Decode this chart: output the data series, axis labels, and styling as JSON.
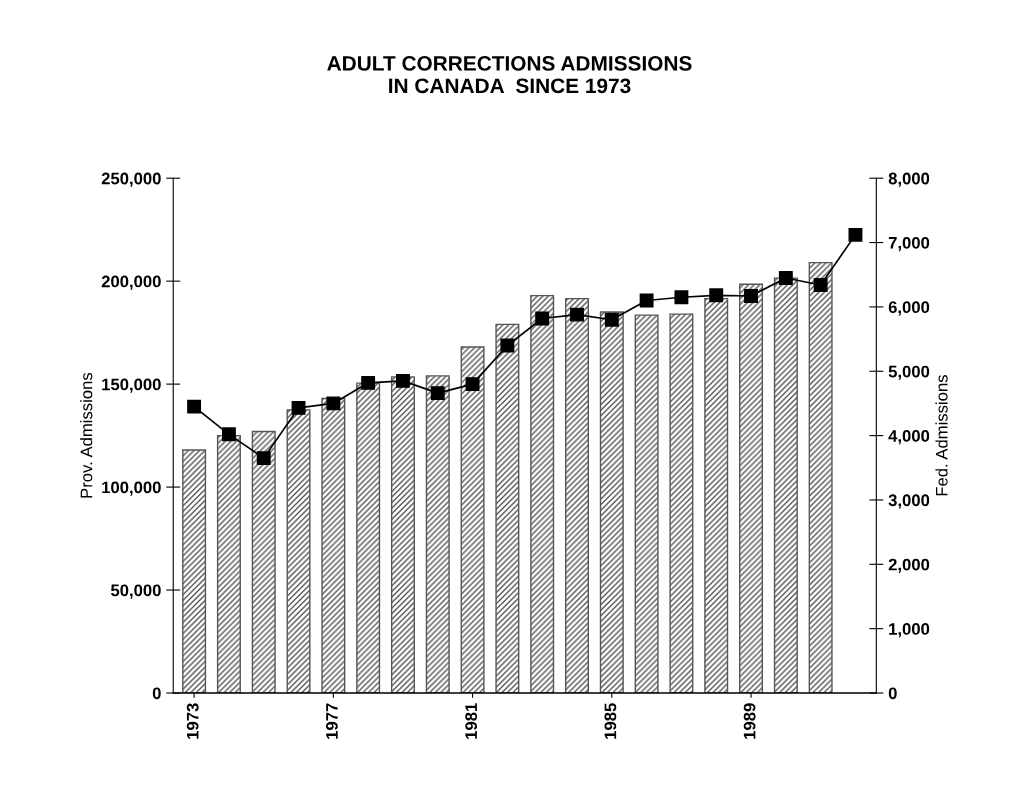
{
  "chart_data": {
    "type": "bar",
    "title": "ADULT CORRECTIONS ADMISSIONS\nIN CANADA  SINCE 1973",
    "ylabel": "Prov. Admissions",
    "y2label": "Fed. Admissions",
    "categories": [
      "1973",
      null,
      null,
      null,
      "1977",
      null,
      null,
      null,
      "1981",
      null,
      null,
      null,
      "1985",
      null,
      null,
      null,
      "1989",
      null,
      null,
      null
    ],
    "series": [
      {
        "color": "#555555",
        "values": [
          118000,
          125000,
          127000,
          137500,
          143000,
          150500,
          153500,
          154000,
          168000,
          179000,
          193000,
          191500,
          185000,
          183500,
          184000,
          191500,
          198500,
          201500,
          209000,
          null
        ]
      },
      {
        "type": "line",
        "axis": "y2",
        "color": "#000000",
        "marker": "square",
        "values": [
          4450,
          4020,
          3650,
          4430,
          4500,
          4820,
          4850,
          4660,
          4800,
          5400,
          5820,
          5880,
          5800,
          6100,
          6150,
          6180,
          6170,
          6450,
          6340,
          7120
        ]
      }
    ],
    "ylim": [
      0,
      250000
    ],
    "yticks": [
      {
        "value": 0,
        "label": "0"
      },
      {
        "value": 50000,
        "label": "50,000"
      },
      {
        "value": 100000,
        "label": "100,000"
      },
      {
        "value": 150000,
        "label": "150,000"
      },
      {
        "value": 200000,
        "label": "200,000"
      },
      {
        "value": 250000,
        "label": "250,000"
      }
    ],
    "y2lim": [
      0,
      8000
    ],
    "y2ticks": [
      {
        "value": 0,
        "label": "0"
      },
      {
        "value": 1000,
        "label": "1,000"
      },
      {
        "value": 2000,
        "label": "2,000"
      },
      {
        "value": 3000,
        "label": "3,000"
      },
      {
        "value": 4000,
        "label": "4,000"
      },
      {
        "value": 5000,
        "label": "5,000"
      },
      {
        "value": 6000,
        "label": "6,000"
      },
      {
        "value": 7000,
        "label": "7,000"
      },
      {
        "value": 8000,
        "label": "8,000"
      }
    ],
    "grid": false,
    "legend": false
  }
}
